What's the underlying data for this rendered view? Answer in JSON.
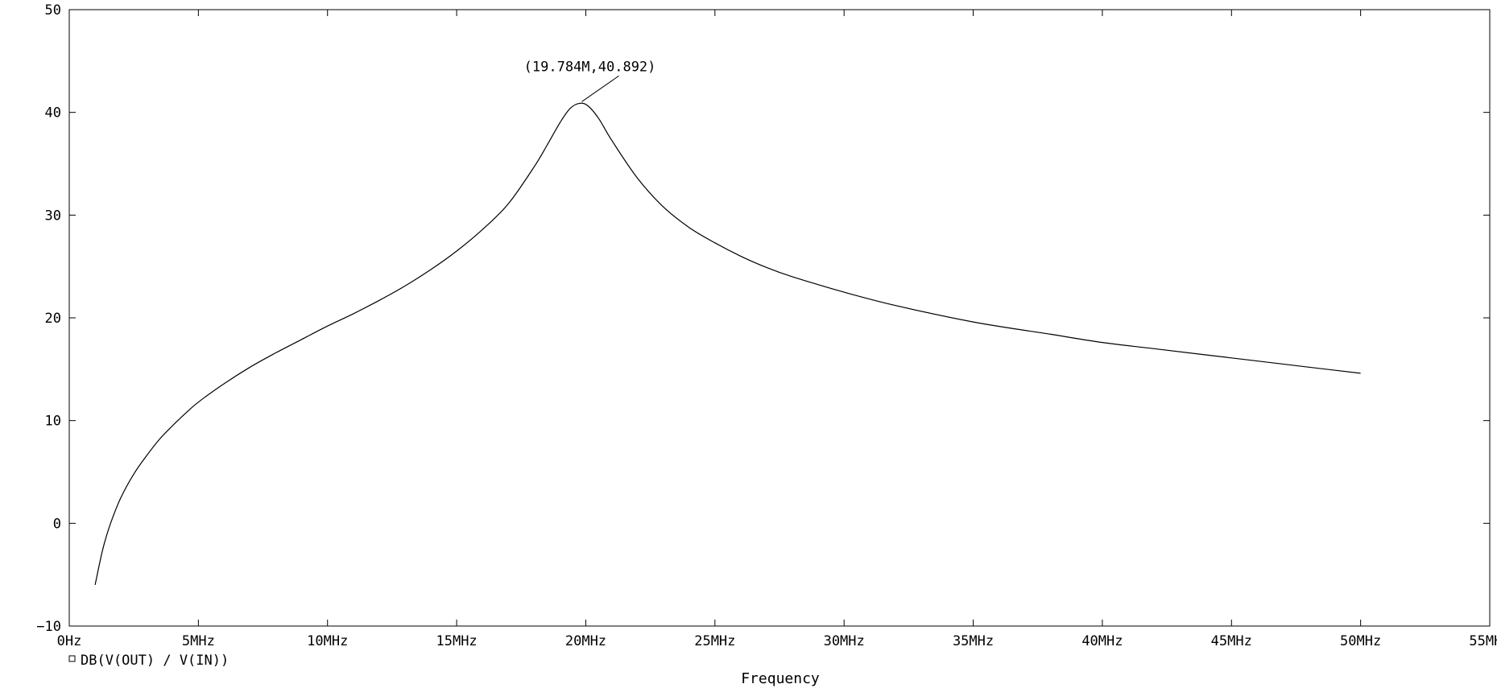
{
  "chart_data": {
    "type": "line",
    "title": "",
    "xlabel": "Frequency",
    "ylabel": "",
    "xlim": [
      0,
      55
    ],
    "ylim": [
      -10,
      50
    ],
    "x_unit": "MHz",
    "x_ticks": [
      {
        "value": 0,
        "label": "0Hz"
      },
      {
        "value": 5,
        "label": "5MHz"
      },
      {
        "value": 10,
        "label": "10MHz"
      },
      {
        "value": 15,
        "label": "15MHz"
      },
      {
        "value": 20,
        "label": "20MHz"
      },
      {
        "value": 25,
        "label": "25MHz"
      },
      {
        "value": 30,
        "label": "30MHz"
      },
      {
        "value": 35,
        "label": "35MHz"
      },
      {
        "value": 40,
        "label": "40MHz"
      },
      {
        "value": 45,
        "label": "45MHz"
      },
      {
        "value": 50,
        "label": "50MHz"
      },
      {
        "value": 55,
        "label": "55MHz"
      }
    ],
    "y_ticks": [
      {
        "value": -10,
        "label": "−10"
      },
      {
        "value": 0,
        "label": "0"
      },
      {
        "value": 10,
        "label": "10"
      },
      {
        "value": 20,
        "label": "20"
      },
      {
        "value": 30,
        "label": "30"
      },
      {
        "value": 40,
        "label": "40"
      },
      {
        "value": 50,
        "label": "50"
      }
    ],
    "grid": false,
    "legend_position": "bottom-left",
    "series": [
      {
        "name": "DB(V(OUT) / V(IN))",
        "color": "#000000",
        "x": [
          1,
          1.3,
          1.6,
          2,
          2.5,
          3,
          3.5,
          4,
          4.5,
          5,
          6,
          7,
          8,
          9,
          10,
          11,
          12,
          13,
          14,
          15,
          16,
          17,
          18,
          18.5,
          19,
          19.4,
          19.784,
          20.1,
          20.5,
          21,
          22,
          23,
          24,
          25,
          26,
          27,
          28,
          30,
          32,
          35,
          38,
          40,
          42,
          45,
          48,
          50
        ],
        "y": [
          -6,
          -2.5,
          0,
          2.5,
          4.8,
          6.6,
          8.2,
          9.5,
          10.7,
          11.8,
          13.6,
          15.2,
          16.6,
          17.9,
          19.2,
          20.4,
          21.7,
          23.1,
          24.7,
          26.5,
          28.6,
          31.1,
          34.7,
          36.8,
          39,
          40.4,
          40.892,
          40.6,
          39.4,
          37.3,
          33.6,
          30.8,
          28.8,
          27.3,
          26,
          24.9,
          24,
          22.5,
          21.2,
          19.6,
          18.4,
          17.6,
          17,
          16.1,
          15.2,
          14.6
        ]
      }
    ],
    "annotations": [
      {
        "x": 19.784,
        "y": 40.892,
        "label": "(19.784M,40.892)"
      }
    ]
  }
}
